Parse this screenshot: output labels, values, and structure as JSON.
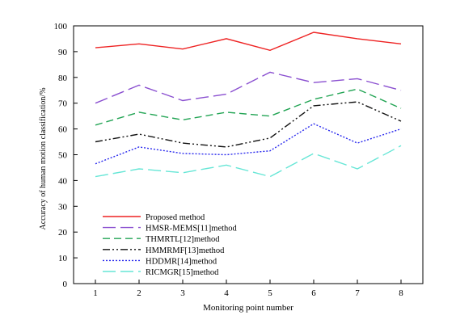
{
  "chart_data": {
    "type": "line",
    "title": "",
    "xlabel": "Monitoring point number",
    "ylabel": "Accuracy of human motion classification/%",
    "x": [
      1,
      2,
      3,
      4,
      5,
      6,
      7,
      8
    ],
    "xlim": [
      0.5,
      8.5
    ],
    "ylim": [
      0,
      100
    ],
    "yticks": [
      0,
      10,
      20,
      30,
      40,
      50,
      60,
      70,
      80,
      90,
      100
    ],
    "grid": false,
    "legend_position": "bottom-left",
    "series": [
      {
        "name": "Proposed method",
        "color": "#ee2222",
        "dash": "solid",
        "values": [
          91.5,
          93,
          91,
          95,
          90.5,
          97.5,
          95,
          93
        ]
      },
      {
        "name": "HMSR-MEMS[11]method",
        "color": "#8a4fd0",
        "dash": "long-dash",
        "values": [
          70,
          77,
          71,
          73.5,
          82,
          78,
          79.5,
          75
        ]
      },
      {
        "name": "THMRTL[12]method",
        "color": "#22a454",
        "dash": "dash",
        "values": [
          61.5,
          66.5,
          63.5,
          66.5,
          65,
          71.5,
          75.5,
          68
        ]
      },
      {
        "name": "HMMRMF[13]method",
        "color": "#111111",
        "dash": "dash-dot-dot",
        "values": [
          55,
          58,
          54.5,
          53,
          56.5,
          69,
          70.5,
          63
        ]
      },
      {
        "name": "HDDMR[14]method",
        "color": "#2a2aee",
        "dash": "dot",
        "values": [
          46.5,
          53,
          50.5,
          50,
          51.5,
          62,
          54.5,
          60
        ]
      },
      {
        "name": "RICMGR[15]method",
        "color": "#66e6d6",
        "dash": "long-dash",
        "values": [
          41.5,
          44.5,
          43,
          46,
          41.5,
          50.5,
          44.5,
          53.5
        ]
      }
    ]
  }
}
